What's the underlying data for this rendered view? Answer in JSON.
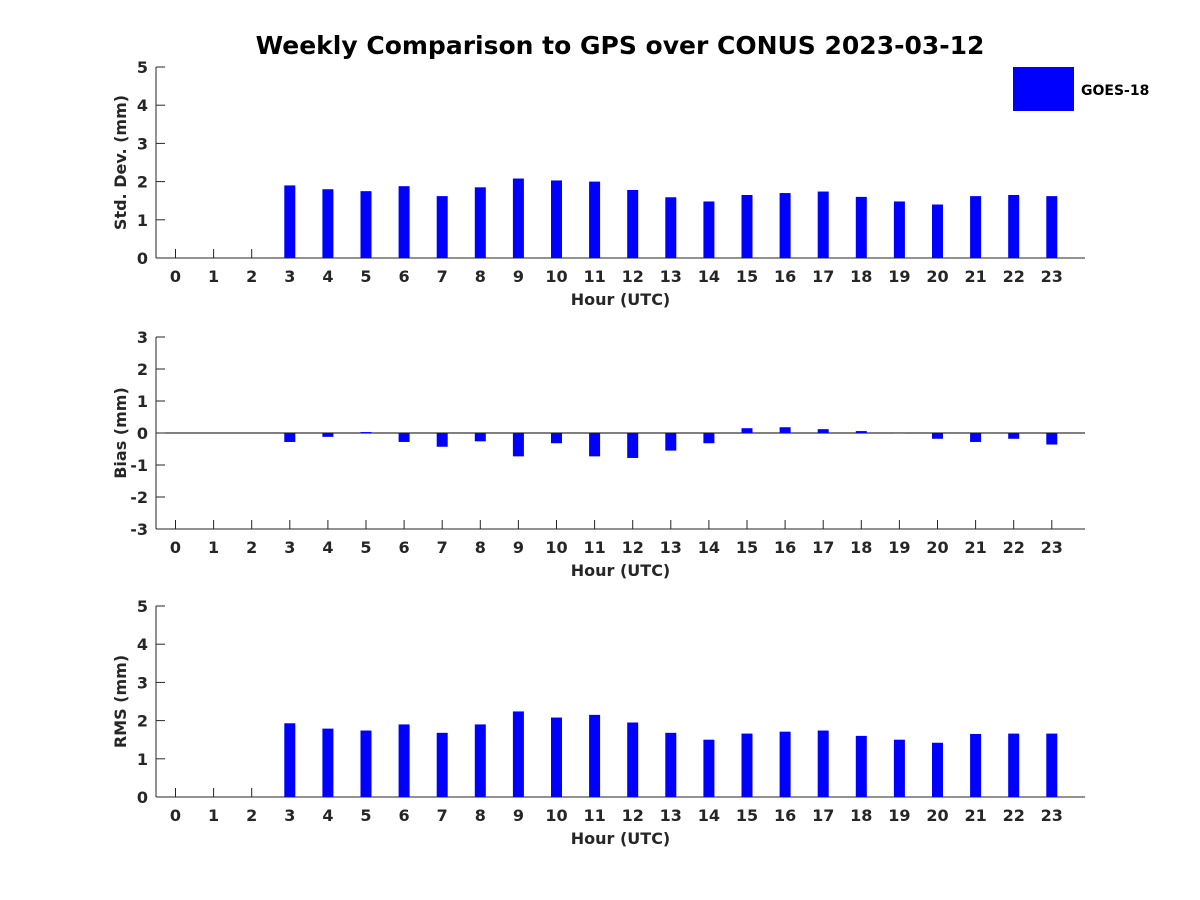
{
  "chart_data": {
    "type": "bar",
    "title": "Weekly Comparison to GPS over CONUS 2023-03-12",
    "legend": {
      "entries": [
        {
          "name": "GOES-18",
          "color": "#0000ff"
        }
      ],
      "placement": "top-right"
    },
    "categories": [
      "0",
      "1",
      "2",
      "3",
      "4",
      "5",
      "6",
      "7",
      "8",
      "9",
      "10",
      "11",
      "12",
      "13",
      "14",
      "15",
      "16",
      "17",
      "18",
      "19",
      "20",
      "21",
      "22",
      "23"
    ],
    "panels": [
      {
        "ylabel": "Std. Dev. (mm)",
        "xlabel": "Hour (UTC)",
        "ylim": [
          0,
          5
        ],
        "yticks": [
          "0",
          "1",
          "2",
          "3",
          "4",
          "5"
        ],
        "series": [
          {
            "name": "GOES-18",
            "values": [
              null,
              null,
              null,
              1.9,
              1.8,
              1.75,
              1.88,
              1.62,
              1.85,
              2.08,
              2.03,
              2.0,
              1.78,
              1.59,
              1.48,
              1.65,
              1.7,
              1.74,
              1.6,
              1.48,
              1.4,
              1.62,
              1.65,
              1.62
            ]
          }
        ]
      },
      {
        "ylabel": "Bias (mm)",
        "xlabel": "Hour (UTC)",
        "ylim": [
          -3,
          3
        ],
        "yticks": [
          "-3",
          "-2",
          "-1",
          "0",
          "1",
          "2",
          "3"
        ],
        "series": [
          {
            "name": "GOES-18",
            "values": [
              null,
              null,
              null,
              -0.28,
              -0.12,
              0.03,
              -0.28,
              -0.43,
              -0.26,
              -0.73,
              -0.32,
              -0.73,
              -0.78,
              -0.55,
              -0.32,
              0.15,
              0.18,
              0.12,
              0.06,
              0.0,
              -0.18,
              -0.28,
              -0.18,
              -0.36
            ]
          }
        ]
      },
      {
        "ylabel": "RMS (mm)",
        "xlabel": "Hour (UTC)",
        "ylim": [
          0,
          5
        ],
        "yticks": [
          "0",
          "1",
          "2",
          "3",
          "4",
          "5"
        ],
        "series": [
          {
            "name": "GOES-18",
            "values": [
              null,
              null,
              null,
              1.93,
              1.79,
              1.74,
              1.9,
              1.68,
              1.9,
              2.24,
              2.08,
              2.15,
              1.95,
              1.68,
              1.5,
              1.66,
              1.71,
              1.74,
              1.6,
              1.5,
              1.42,
              1.65,
              1.66,
              1.66
            ]
          }
        ]
      }
    ]
  }
}
